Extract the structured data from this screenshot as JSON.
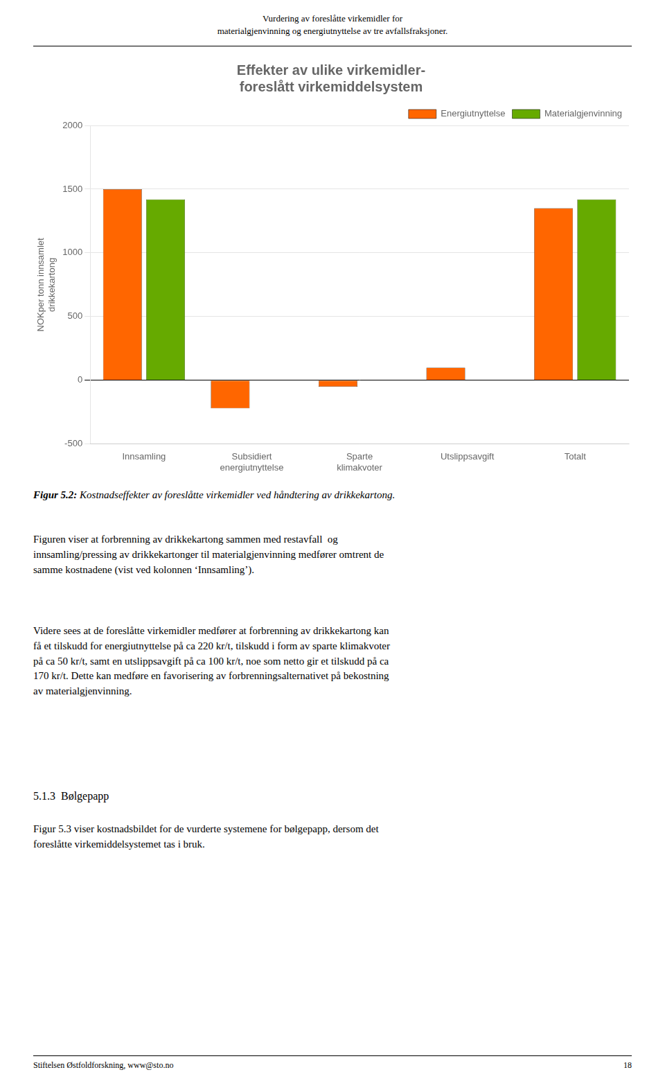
{
  "header": "Vurdering av foreslåtte virkemidler for\nmaterialgjenvinning og energiutnyttelse av tre avfallsfraksjoner.",
  "figcaption_bold": "Figur 5.2:",
  "figcaption_italic": " Kostnadseffekter av foreslåtte virkemidler ved håndtering av drikkekartong.",
  "body_text1": "Figuren viser at forbrenning av drikkekartong sammen med restavfall  og\ninnsamling/pressing av drikkekartonger til materialgjenvinning medfører omtrent de\nsamme kostnadene (vist ved kolonnen ‘Innsamling’).",
  "body_text2": "Videre sees at de foreslåtte virkemidler medfører at forbrenning av drikkekartong kan\nfå et tilskudd for energiutnyttelse på ca 220 kr/t, tilskudd i form av sparte klimakvoter\npå ca 50 kr/t, samt en utslippsavgift på ca 100 kr/t, noe som netto gir et tilskudd på ca\n170 kr/t. Dette kan medføre en favorisering av forbrenningsalternativet på bekostning\nav materialgjenvinning.",
  "section_heading": "5.1.3  Bølgepapp",
  "section_text": "Figur 5.3 viser kostnadsbildet for de vurderte systemene for bølgepapp, dersom det\nforeslåtte virkemiddelsystemet tas i bruk.",
  "footer_left": "Stiftelsen Østfoldforskning, www@sto.no",
  "footer_right": "18",
  "chart_data": {
    "type": "bar",
    "title": "Effekter av ulike virkemidler-\nforeslått virkemiddelsystem",
    "y_label": "NOKper tonn innsamlet\ndrikkekartong",
    "categories": [
      "Innsamling",
      "Subsidiert\nenergiutnyttelse",
      "Sparte\nklimakvoter",
      "Utslippsavgift",
      "Totalt"
    ],
    "series": [
      {
        "name": "Energiutnyttelse",
        "color": "#FF6600",
        "values": [
          1500,
          -220,
          -50,
          100,
          1350
        ]
      },
      {
        "name": "Materialgjenvinning",
        "color": "#66AA00",
        "values": [
          1420,
          0,
          0,
          0,
          1420
        ]
      }
    ],
    "ylim": [
      -500,
      2000
    ],
    "yticks": [
      -500,
      0,
      500,
      1000,
      1500,
      2000
    ],
    "grid": true,
    "legend": "upper right"
  }
}
